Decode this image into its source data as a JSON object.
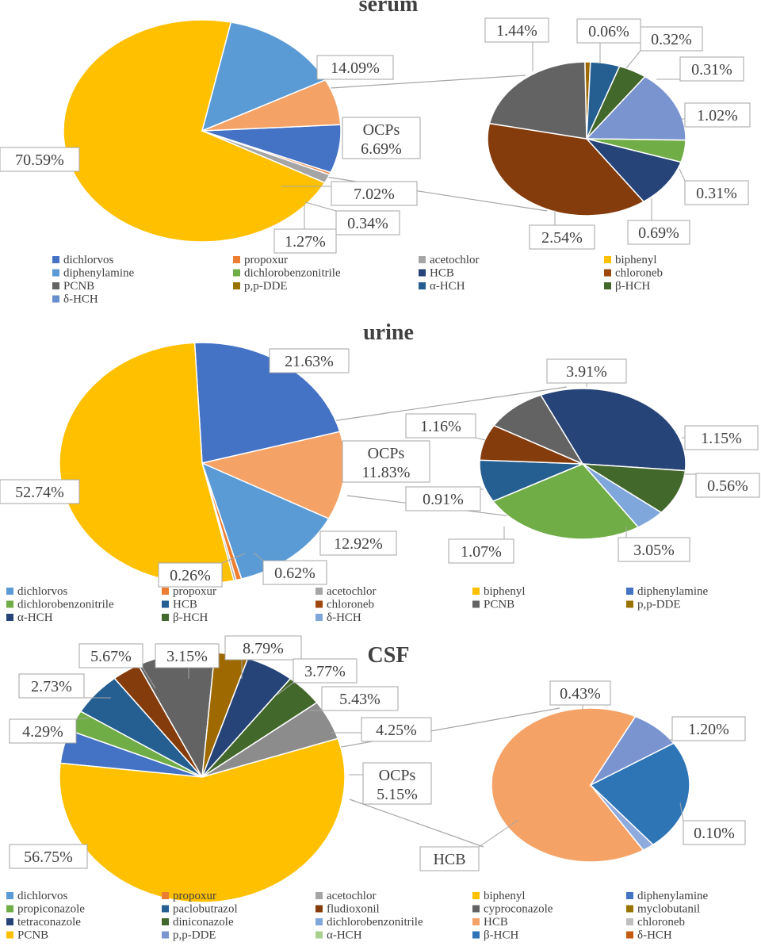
{
  "chart_data": [
    {
      "type": "pie",
      "title": "serum",
      "main_pie": {
        "slices": [
          {
            "label": "dichlorvos",
            "value": 7.02,
            "text": "7.02%",
            "color": "#4472C4"
          },
          {
            "label": "propoxur",
            "value": 0.34,
            "text": "0.34%",
            "color": "#ED7D31"
          },
          {
            "label": "acetochlor",
            "value": 1.27,
            "text": "1.27%",
            "color": "#A5A5A5"
          },
          {
            "label": "biphenyl",
            "value": 70.59,
            "text": "70.59%",
            "color": "#FFC000"
          },
          {
            "label": "diphenylamine",
            "value": 14.09,
            "text": "14.09%",
            "color": "#5B9BD5"
          },
          {
            "label": "OCPs",
            "value": 6.69,
            "text": "OCPs\n6.69%",
            "color": "#F4A266",
            "detail": true
          }
        ]
      },
      "detail_pie": {
        "slices": [
          {
            "label": "p,p-DDE",
            "value": 0.06,
            "text": "0.06%",
            "color": "#9E6A00"
          },
          {
            "label": "α-HCH",
            "value": 0.32,
            "text": "0.32%",
            "color": "#255E91"
          },
          {
            "label": "β-HCH",
            "value": 0.31,
            "text": "0.31%",
            "color": "#43682B"
          },
          {
            "label": "δ-HCH",
            "value": 1.02,
            "text": "1.02%",
            "color": "#7A94D0"
          },
          {
            "label": "dichlorobenzonitrile",
            "value": 0.31,
            "text": "0.31%",
            "color": "#70AD47"
          },
          {
            "label": "HCB",
            "value": 0.69,
            "text": "0.69%",
            "color": "#264478"
          },
          {
            "label": "chloroneb",
            "value": 2.54,
            "text": "2.54%",
            "color": "#843C0C"
          },
          {
            "label": "PCNB",
            "value": 1.44,
            "text": "1.44%",
            "color": "#636363"
          }
        ]
      },
      "legend": [
        "dichlorvos",
        "propoxur",
        "acetochlor",
        "biphenyl",
        "diphenylamine",
        "dichlorobenzonitrile",
        "HCB",
        "chloroneb",
        "PCNB",
        "p,p-DDE",
        "α-HCH",
        "β-HCH",
        "δ-HCH"
      ],
      "legend_colors": [
        "#4472C4",
        "#ED7D31",
        "#A5A5A5",
        "#FFC000",
        "#5B9BD5",
        "#70AD47",
        "#264478",
        "#9E480E",
        "#636363",
        "#997300",
        "#255E91",
        "#43682B",
        "#698ED0"
      ]
    },
    {
      "type": "pie",
      "title": "urine",
      "main_pie": {
        "slices": [
          {
            "label": "diphenylamine",
            "value": 21.63,
            "text": "21.63%",
            "color": "#4472C4"
          },
          {
            "label": "OCPs",
            "value": 11.83,
            "text": "OCPs\n11.83%",
            "color": "#F4A266",
            "detail": true
          },
          {
            "label": "dichlorvos",
            "value": 12.92,
            "text": "12.92%",
            "color": "#5B9BD5"
          },
          {
            "label": "propoxur",
            "value": 0.62,
            "text": "0.62%",
            "color": "#ED7D31"
          },
          {
            "label": "acetochlor",
            "value": 0.26,
            "text": "0.26%",
            "color": "#A5A5A5"
          },
          {
            "label": "biphenyl",
            "value": 52.74,
            "text": "52.74%",
            "color": "#FFC000"
          }
        ]
      },
      "detail_pie": {
        "slices": [
          {
            "label": "α-HCH",
            "value": 3.91,
            "text": "3.91%",
            "color": "#264478"
          },
          {
            "label": "β-HCH",
            "value": 1.15,
            "text": "1.15%",
            "color": "#43682B"
          },
          {
            "label": "δ-HCH",
            "value": 0.56,
            "text": "0.56%",
            "color": "#7FA7DB"
          },
          {
            "label": "dichlorobenzonitrile",
            "value": 3.05,
            "text": "3.05%",
            "color": "#70AD47"
          },
          {
            "label": "HCB",
            "value": 1.07,
            "text": "1.07%",
            "color": "#255E91"
          },
          {
            "label": "chloroneb",
            "value": 0.91,
            "text": "0.91%",
            "color": "#843C0C"
          },
          {
            "label": "PCNB",
            "value": 1.16,
            "text": "1.16%",
            "color": "#636363"
          }
        ]
      },
      "legend": [
        "dichlorvos",
        "propoxur",
        "acetochlor",
        "biphenyl",
        "diphenylamine",
        "dichlorobenzonitrile",
        "HCB",
        "chloroneb",
        "PCNB",
        "p,p-DDE",
        "α-HCH",
        "β-HCH",
        "δ-HCH"
      ],
      "legend_colors": [
        "#5B9BD5",
        "#ED7D31",
        "#A5A5A5",
        "#FFC000",
        "#4472C4",
        "#70AD47",
        "#255E91",
        "#9E480E",
        "#636363",
        "#997300",
        "#264478",
        "#43682B",
        "#7FA7DB"
      ]
    },
    {
      "type": "pie",
      "title": "CSF",
      "main_pie": {
        "slices": [
          {
            "label": "dichlorvos",
            "value": 4.29,
            "text": "4.29%",
            "color": "#4472C4"
          },
          {
            "label": "propiconazole",
            "value": 2.73,
            "text": "2.73%",
            "color": "#70AD47"
          },
          {
            "label": "paclobutrazol",
            "value": 5.67,
            "text": "5.67%",
            "color": "#255E91"
          },
          {
            "label": "fludioxonil",
            "value": 3.15,
            "text": "3.15%",
            "color": "#843C0C"
          },
          {
            "label": "cyproconazole",
            "value": 8.79,
            "text": "8.79%",
            "color": "#636363"
          },
          {
            "label": "myclobutanil",
            "value": 3.77,
            "text": "3.77%",
            "color": "#9E6A00"
          },
          {
            "label": "tetraconazole",
            "value": 5.43,
            "text": "5.43%",
            "color": "#264478"
          },
          {
            "label": "diniconazole",
            "value": 4.25,
            "text": "4.25%",
            "color": "#43682B"
          },
          {
            "label": "OCPs",
            "value": 5.15,
            "text": "OCPs\n5.15%",
            "color": "#8C8C8C",
            "detail": true
          },
          {
            "label": "biphenyl",
            "value": 56.75,
            "text": "56.75%",
            "color": "#FFC000"
          }
        ]
      },
      "detail_pie": {
        "slices": [
          {
            "label": "β-HCH",
            "value": 1.2,
            "text": "1.20%",
            "color": "#2E75B6"
          },
          {
            "label": "δ-HCH",
            "value": 0.1,
            "text": "0.10%",
            "color": "#8FAADC"
          },
          {
            "label": "HCB",
            "value": 3.42,
            "text": "HCB",
            "color": "#F4A266"
          },
          {
            "label": "p,p-DDE",
            "value": 0.43,
            "text": "0.43%",
            "color": "#7A94D0"
          }
        ]
      },
      "legend": [
        "dichlorvos",
        "propoxur",
        "acetochlor",
        "biphenyl",
        "diphenylamine",
        "propiconazole",
        "paclobutrazol",
        "fludioxonil",
        "cyproconazole",
        "myclobutanil",
        "tetraconazole",
        "diniconazole",
        "dichlorobenzonitrile",
        "HCB",
        "chloroneb",
        "PCNB",
        "p,p-DDE",
        "α-HCH",
        "β-HCH",
        "δ-HCH"
      ],
      "legend_colors": [
        "#5B9BD5",
        "#ED7D31",
        "#A5A5A5",
        "#FFC000",
        "#4472C4",
        "#70AD47",
        "#255E91",
        "#843C0C",
        "#636363",
        "#997300",
        "#264478",
        "#43682B",
        "#7FA7DB",
        "#F4A266",
        "#BFBFBF",
        "#FFC000",
        "#7A94D0",
        "#A9D18E",
        "#2E75B6",
        "#C55A11"
      ]
    }
  ]
}
